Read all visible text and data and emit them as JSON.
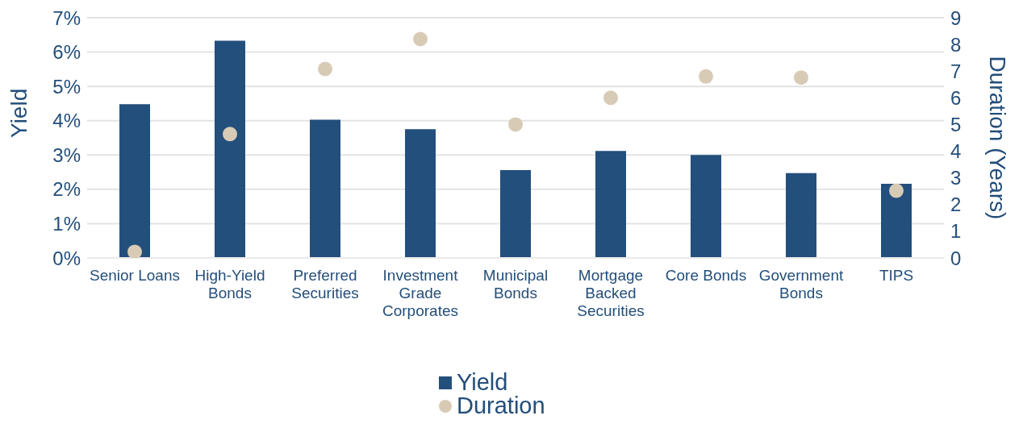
{
  "chart_data": {
    "type": "bar",
    "ylabel": "Yield",
    "y2label": "Duration (Years)",
    "categories": [
      "Senior Loans",
      "High-Yield Bonds",
      "Preferred Securities",
      "Investment Grade Corporates",
      "Municipal Bonds",
      "Mortgage Backed Securities",
      "Core Bonds",
      "Government Bonds",
      "TIPS"
    ],
    "series": [
      {
        "name": "Yield",
        "color": "#234f7d",
        "values": [
          4.48,
          6.33,
          4.03,
          3.75,
          2.56,
          3.12,
          3.0,
          2.47,
          2.16
        ]
      },
      {
        "name": "Duration",
        "type": "scatter",
        "axis": "y2",
        "color": "#d8cbb6",
        "marker": "circle",
        "values": [
          0.23,
          4.64,
          7.08,
          8.2,
          5.0,
          6.0,
          6.8,
          6.76,
          2.52
        ]
      }
    ],
    "ylim": [
      0,
      7
    ],
    "yticks": [
      {
        "value": 0,
        "label": "0%"
      },
      {
        "value": 1,
        "label": "1%"
      },
      {
        "value": 2,
        "label": "2%"
      },
      {
        "value": 3,
        "label": "3%"
      },
      {
        "value": 4,
        "label": "4%"
      },
      {
        "value": 5,
        "label": "5%"
      },
      {
        "value": 6,
        "label": "6%"
      },
      {
        "value": 7,
        "label": "7%"
      }
    ],
    "y2lim": [
      0,
      9
    ],
    "y2ticks": [
      0,
      1,
      2,
      3,
      4,
      5,
      6,
      7,
      8,
      9
    ],
    "grid": "y",
    "legend": "bottom"
  }
}
